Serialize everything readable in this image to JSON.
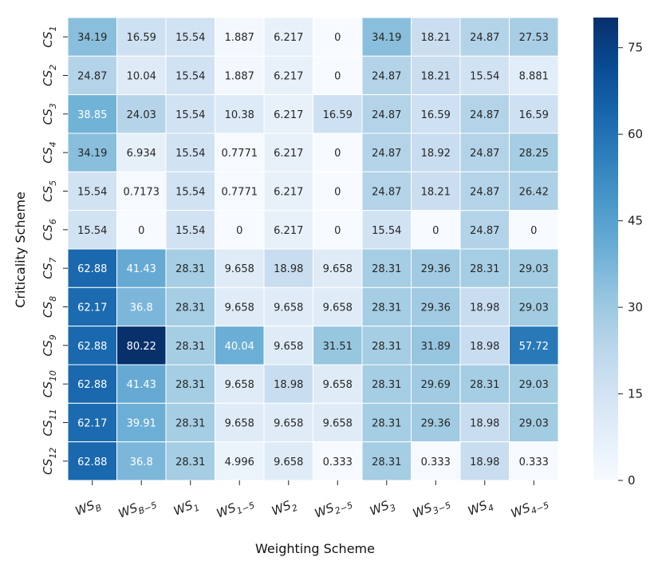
{
  "chart_data": {
    "type": "heatmap",
    "xlabel": "Weighting Scheme",
    "ylabel": "Criticality Scheme",
    "x_categories": [
      {
        "base": "WS",
        "sub": "B"
      },
      {
        "base": "WS",
        "sub": "B−5"
      },
      {
        "base": "WS",
        "sub": "1"
      },
      {
        "base": "WS",
        "sub": "1−5"
      },
      {
        "base": "WS",
        "sub": "2"
      },
      {
        "base": "WS",
        "sub": "2−5"
      },
      {
        "base": "WS",
        "sub": "3"
      },
      {
        "base": "WS",
        "sub": "3−5"
      },
      {
        "base": "WS",
        "sub": "4"
      },
      {
        "base": "WS",
        "sub": "4−5"
      }
    ],
    "y_categories": [
      {
        "base": "CS",
        "sub": "1"
      },
      {
        "base": "CS",
        "sub": "2"
      },
      {
        "base": "CS",
        "sub": "3"
      },
      {
        "base": "CS",
        "sub": "4"
      },
      {
        "base": "CS",
        "sub": "5"
      },
      {
        "base": "CS",
        "sub": "6"
      },
      {
        "base": "CS",
        "sub": "7"
      },
      {
        "base": "CS",
        "sub": "8"
      },
      {
        "base": "CS",
        "sub": "9"
      },
      {
        "base": "CS",
        "sub": "10"
      },
      {
        "base": "CS",
        "sub": "11"
      },
      {
        "base": "CS",
        "sub": "12"
      }
    ],
    "values": [
      [
        "34.19",
        "16.59",
        "15.54",
        "1.887",
        "6.217",
        "0",
        "34.19",
        "18.21",
        "24.87",
        "27.53"
      ],
      [
        "24.87",
        "10.04",
        "15.54",
        "1.887",
        "6.217",
        "0",
        "24.87",
        "18.21",
        "15.54",
        "8.881"
      ],
      [
        "38.85",
        "24.03",
        "15.54",
        "10.38",
        "6.217",
        "16.59",
        "24.87",
        "16.59",
        "24.87",
        "16.59"
      ],
      [
        "34.19",
        "6.934",
        "15.54",
        "0.7771",
        "6.217",
        "0",
        "24.87",
        "18.92",
        "24.87",
        "28.25"
      ],
      [
        "15.54",
        "0.7173",
        "15.54",
        "0.7771",
        "6.217",
        "0",
        "24.87",
        "18.21",
        "24.87",
        "26.42"
      ],
      [
        "15.54",
        "0",
        "15.54",
        "0",
        "6.217",
        "0",
        "15.54",
        "0",
        "24.87",
        "0"
      ],
      [
        "62.88",
        "41.43",
        "28.31",
        "9.658",
        "18.98",
        "9.658",
        "28.31",
        "29.36",
        "28.31",
        "29.03"
      ],
      [
        "62.17",
        "36.8",
        "28.31",
        "9.658",
        "9.658",
        "9.658",
        "28.31",
        "29.36",
        "18.98",
        "29.03"
      ],
      [
        "62.88",
        "80.22",
        "28.31",
        "40.04",
        "9.658",
        "31.51",
        "28.31",
        "31.89",
        "18.98",
        "57.72"
      ],
      [
        "62.88",
        "41.43",
        "28.31",
        "9.658",
        "18.98",
        "9.658",
        "28.31",
        "29.69",
        "28.31",
        "29.03"
      ],
      [
        "62.17",
        "39.91",
        "28.31",
        "9.658",
        "9.658",
        "9.658",
        "28.31",
        "29.36",
        "18.98",
        "29.03"
      ],
      [
        "62.88",
        "36.8",
        "28.31",
        "4.996",
        "9.658",
        "0.333",
        "28.31",
        "0.333",
        "18.98",
        "0.333"
      ]
    ],
    "colorbar": {
      "colormap": "Blues",
      "range": [
        0,
        80.22
      ],
      "ticks": [
        0,
        15,
        30,
        45,
        60,
        75
      ]
    }
  }
}
